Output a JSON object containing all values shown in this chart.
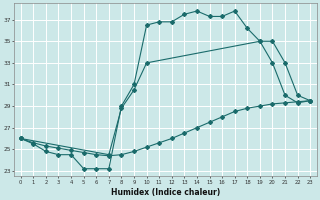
{
  "xlabel": "Humidex (Indice chaleur)",
  "bg_color": "#cce8e8",
  "grid_color": "#ffffff",
  "line_color": "#1a6b6b",
  "xlim": [
    -0.5,
    23.5
  ],
  "ylim": [
    22.5,
    38.5
  ],
  "yticks": [
    23,
    25,
    27,
    29,
    31,
    33,
    35,
    37
  ],
  "xticks": [
    0,
    1,
    2,
    3,
    4,
    5,
    6,
    7,
    8,
    9,
    10,
    11,
    12,
    13,
    14,
    15,
    16,
    17,
    18,
    19,
    20,
    21,
    22,
    23
  ],
  "line1_x": [
    0,
    1,
    2,
    3,
    4,
    5,
    6,
    7,
    8,
    9,
    10,
    11,
    12,
    13,
    14,
    15,
    16,
    17,
    18,
    19,
    20,
    21,
    22,
    23
  ],
  "line1_y": [
    26.0,
    25.5,
    24.8,
    24.5,
    24.5,
    23.2,
    23.2,
    23.2,
    29.0,
    31.0,
    36.5,
    36.8,
    36.8,
    37.5,
    37.8,
    37.3,
    37.3,
    37.8,
    36.2,
    35.0,
    33.0,
    30.0,
    29.3,
    29.5
  ],
  "line2_x": [
    0,
    7,
    8,
    9,
    10,
    19,
    20,
    21,
    22,
    23
  ],
  "line2_y": [
    26.0,
    24.5,
    28.8,
    30.5,
    33.0,
    35.0,
    35.0,
    33.0,
    30.0,
    29.5
  ],
  "line3_x": [
    0,
    1,
    2,
    3,
    4,
    5,
    6,
    7,
    8,
    9,
    10,
    11,
    12,
    13,
    14,
    15,
    16,
    17,
    18,
    19,
    20,
    21,
    22,
    23
  ],
  "line3_y": [
    26.0,
    25.6,
    25.3,
    25.1,
    24.9,
    24.7,
    24.5,
    24.4,
    24.5,
    24.8,
    25.2,
    25.6,
    26.0,
    26.5,
    27.0,
    27.5,
    28.0,
    28.5,
    28.8,
    29.0,
    29.2,
    29.3,
    29.4,
    29.5
  ]
}
